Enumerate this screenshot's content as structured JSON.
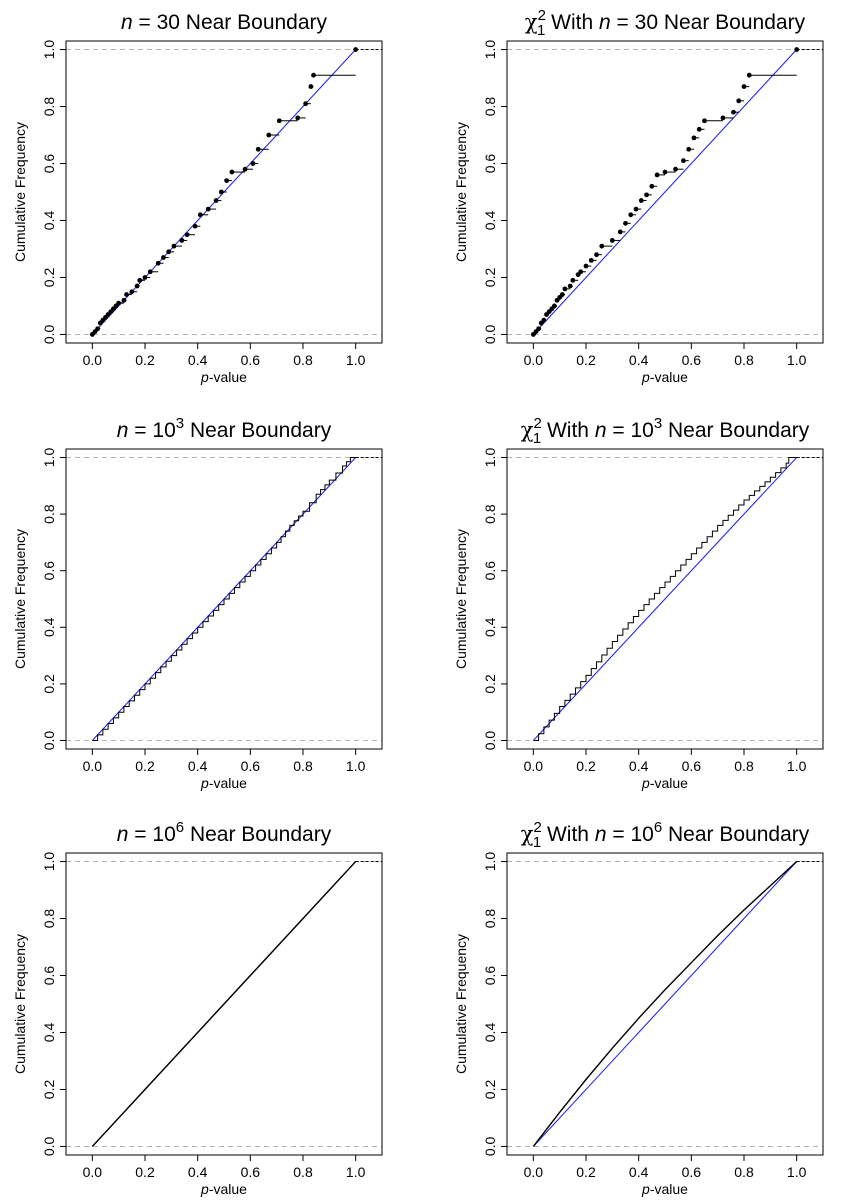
{
  "figure": {
    "colors": {
      "ecdf": "#000000",
      "reference": "#2828e6",
      "guide": "#b4b4b4"
    }
  },
  "chart_data": [
    {
      "type": "line",
      "title": {
        "italic": "n",
        "rest": " = 30 Near Boundary"
      },
      "xlabel": {
        "italic": "p",
        "rest": "-value"
      },
      "ylabel": "Cumulative Frequency",
      "xlim": [
        -0.1,
        1.1
      ],
      "ylim": [
        -0.03,
        1.03
      ],
      "xticks": [
        "0.0",
        "0.2",
        "0.4",
        "0.6",
        "0.8",
        "1.0"
      ],
      "yticks": [
        "0.0",
        "0.2",
        "0.4",
        "0.6",
        "0.8",
        "1.0"
      ],
      "reference_lines": [
        0,
        1
      ],
      "grid": false,
      "series": [
        {
          "role": "reference",
          "x": [
            0,
            1
          ],
          "y": [
            0,
            1
          ]
        },
        {
          "role": "ecdf",
          "style": "step-points",
          "points": [
            [
              0.0,
              0.0
            ],
            [
              0.01,
              0.01
            ],
            [
              0.02,
              0.02
            ],
            [
              0.03,
              0.04
            ],
            [
              0.04,
              0.05
            ],
            [
              0.05,
              0.06
            ],
            [
              0.06,
              0.07
            ],
            [
              0.07,
              0.08
            ],
            [
              0.08,
              0.09
            ],
            [
              0.09,
              0.1
            ],
            [
              0.1,
              0.11
            ],
            [
              0.12,
              0.12
            ],
            [
              0.13,
              0.14
            ],
            [
              0.15,
              0.15
            ],
            [
              0.17,
              0.17
            ],
            [
              0.18,
              0.19
            ],
            [
              0.2,
              0.2
            ],
            [
              0.22,
              0.22
            ],
            [
              0.25,
              0.25
            ],
            [
              0.27,
              0.27
            ],
            [
              0.29,
              0.29
            ],
            [
              0.31,
              0.31
            ],
            [
              0.34,
              0.33
            ],
            [
              0.36,
              0.35
            ],
            [
              0.39,
              0.38
            ],
            [
              0.41,
              0.42
            ],
            [
              0.44,
              0.44
            ],
            [
              0.47,
              0.47
            ],
            [
              0.49,
              0.5
            ],
            [
              0.51,
              0.54
            ],
            [
              0.53,
              0.57
            ],
            [
              0.58,
              0.58
            ],
            [
              0.61,
              0.6
            ],
            [
              0.63,
              0.65
            ],
            [
              0.67,
              0.7
            ],
            [
              0.71,
              0.75
            ],
            [
              0.78,
              0.76
            ],
            [
              0.81,
              0.81
            ],
            [
              0.83,
              0.87
            ],
            [
              0.84,
              0.91
            ],
            [
              1.0,
              1.0
            ]
          ]
        }
      ]
    },
    {
      "type": "line",
      "title": {
        "sym": "χ",
        "sup": "2",
        "sub": "1",
        "pre": " With ",
        "italic": "n",
        "rest": " = 30 Near Boundary"
      },
      "xlabel": {
        "italic": "p",
        "rest": "-value"
      },
      "ylabel": "Cumulative Frequency",
      "xlim": [
        -0.1,
        1.1
      ],
      "ylim": [
        -0.03,
        1.03
      ],
      "xticks": [
        "0.0",
        "0.2",
        "0.4",
        "0.6",
        "0.8",
        "1.0"
      ],
      "yticks": [
        "0.0",
        "0.2",
        "0.4",
        "0.6",
        "0.8",
        "1.0"
      ],
      "reference_lines": [
        0,
        1
      ],
      "grid": false,
      "series": [
        {
          "role": "reference",
          "x": [
            0,
            1
          ],
          "y": [
            0,
            1
          ]
        },
        {
          "role": "ecdf",
          "style": "step-points",
          "points": [
            [
              0.0,
              0.0
            ],
            [
              0.01,
              0.01
            ],
            [
              0.02,
              0.02
            ],
            [
              0.03,
              0.04
            ],
            [
              0.04,
              0.05
            ],
            [
              0.05,
              0.07
            ],
            [
              0.06,
              0.08
            ],
            [
              0.07,
              0.09
            ],
            [
              0.08,
              0.1
            ],
            [
              0.09,
              0.12
            ],
            [
              0.1,
              0.13
            ],
            [
              0.11,
              0.14
            ],
            [
              0.12,
              0.16
            ],
            [
              0.14,
              0.17
            ],
            [
              0.15,
              0.19
            ],
            [
              0.17,
              0.21
            ],
            [
              0.18,
              0.22
            ],
            [
              0.2,
              0.24
            ],
            [
              0.22,
              0.26
            ],
            [
              0.24,
              0.28
            ],
            [
              0.26,
              0.31
            ],
            [
              0.3,
              0.33
            ],
            [
              0.33,
              0.36
            ],
            [
              0.35,
              0.39
            ],
            [
              0.37,
              0.42
            ],
            [
              0.39,
              0.44
            ],
            [
              0.41,
              0.47
            ],
            [
              0.43,
              0.49
            ],
            [
              0.45,
              0.52
            ],
            [
              0.47,
              0.56
            ],
            [
              0.5,
              0.57
            ],
            [
              0.54,
              0.58
            ],
            [
              0.57,
              0.61
            ],
            [
              0.59,
              0.65
            ],
            [
              0.61,
              0.69
            ],
            [
              0.63,
              0.72
            ],
            [
              0.65,
              0.75
            ],
            [
              0.72,
              0.76
            ],
            [
              0.76,
              0.78
            ],
            [
              0.78,
              0.82
            ],
            [
              0.8,
              0.87
            ],
            [
              0.82,
              0.91
            ],
            [
              1.0,
              1.0
            ]
          ]
        }
      ]
    },
    {
      "type": "line",
      "title": {
        "italic": "n",
        "rest": " = 10",
        "sup": "3",
        "after": " Near Boundary"
      },
      "xlabel": {
        "italic": "p",
        "rest": "-value"
      },
      "ylabel": "Cumulative Frequency",
      "xlim": [
        -0.1,
        1.1
      ],
      "ylim": [
        -0.03,
        1.03
      ],
      "xticks": [
        "0.0",
        "0.2",
        "0.4",
        "0.6",
        "0.8",
        "1.0"
      ],
      "yticks": [
        "0.0",
        "0.2",
        "0.4",
        "0.6",
        "0.8",
        "1.0"
      ],
      "reference_lines": [
        0,
        1
      ],
      "grid": false,
      "series": [
        {
          "role": "reference",
          "x": [
            0,
            1
          ],
          "y": [
            0,
            1
          ]
        },
        {
          "role": "ecdf",
          "style": "step",
          "points": [
            [
              0.0,
              0.0
            ],
            [
              0.1,
              0.1
            ],
            [
              0.2,
              0.2
            ],
            [
              0.3,
              0.3
            ],
            [
              0.4,
              0.4
            ],
            [
              0.5,
              0.5
            ],
            [
              0.6,
              0.6
            ],
            [
              0.7,
              0.7
            ],
            [
              0.75,
              0.76
            ],
            [
              0.8,
              0.81
            ],
            [
              0.85,
              0.87
            ],
            [
              0.9,
              0.92
            ],
            [
              0.95,
              0.97
            ],
            [
              0.98,
              1.0
            ],
            [
              1.0,
              1.0
            ]
          ]
        }
      ]
    },
    {
      "type": "line",
      "title": {
        "sym": "χ",
        "sup": "2",
        "sub": "1",
        "pre": " With ",
        "italic": "n",
        "rest": " = 10",
        "sup2": "3",
        "after": " Near Boundary"
      },
      "xlabel": {
        "italic": "p",
        "rest": "-value"
      },
      "ylabel": "Cumulative Frequency",
      "xlim": [
        -0.1,
        1.1
      ],
      "ylim": [
        -0.03,
        1.03
      ],
      "xticks": [
        "0.0",
        "0.2",
        "0.4",
        "0.6",
        "0.8",
        "1.0"
      ],
      "yticks": [
        "0.0",
        "0.2",
        "0.4",
        "0.6",
        "0.8",
        "1.0"
      ],
      "reference_lines": [
        0,
        1
      ],
      "grid": false,
      "series": [
        {
          "role": "reference",
          "x": [
            0,
            1
          ],
          "y": [
            0,
            1
          ]
        },
        {
          "role": "ecdf",
          "style": "step",
          "points": [
            [
              0.0,
              0.0
            ],
            [
              0.1,
              0.12
            ],
            [
              0.2,
              0.23
            ],
            [
              0.3,
              0.35
            ],
            [
              0.4,
              0.46
            ],
            [
              0.5,
              0.56
            ],
            [
              0.6,
              0.66
            ],
            [
              0.7,
              0.76
            ],
            [
              0.8,
              0.85
            ],
            [
              0.9,
              0.93
            ],
            [
              0.96,
              0.98
            ],
            [
              0.97,
              1.0
            ],
            [
              1.0,
              1.0
            ]
          ]
        }
      ]
    },
    {
      "type": "line",
      "title": {
        "italic": "n",
        "rest": " = 10",
        "sup": "6",
        "after": " Near Boundary"
      },
      "xlabel": {
        "italic": "p",
        "rest": "-value"
      },
      "ylabel": "Cumulative Frequency",
      "xlim": [
        -0.1,
        1.1
      ],
      "ylim": [
        -0.03,
        1.03
      ],
      "xticks": [
        "0.0",
        "0.2",
        "0.4",
        "0.6",
        "0.8",
        "1.0"
      ],
      "yticks": [
        "0.0",
        "0.2",
        "0.4",
        "0.6",
        "0.8",
        "1.0"
      ],
      "reference_lines": [
        0,
        1
      ],
      "grid": false,
      "series": [
        {
          "role": "reference",
          "x": [
            0,
            1
          ],
          "y": [
            0,
            1
          ]
        },
        {
          "role": "ecdf",
          "style": "line",
          "points": [
            [
              0.0,
              0.0
            ],
            [
              0.5,
              0.5
            ],
            [
              1.0,
              1.0
            ]
          ]
        }
      ]
    },
    {
      "type": "line",
      "title": {
        "sym": "χ",
        "sup": "2",
        "sub": "1",
        "pre": " With ",
        "italic": "n",
        "rest": " = 10",
        "sup2": "6",
        "after": " Near Boundary"
      },
      "xlabel": {
        "italic": "p",
        "rest": "-value"
      },
      "ylabel": "Cumulative Frequency",
      "xlim": [
        -0.1,
        1.1
      ],
      "ylim": [
        -0.03,
        1.03
      ],
      "xticks": [
        "0.0",
        "0.2",
        "0.4",
        "0.6",
        "0.8",
        "1.0"
      ],
      "yticks": [
        "0.0",
        "0.2",
        "0.4",
        "0.6",
        "0.8",
        "1.0"
      ],
      "reference_lines": [
        0,
        1
      ],
      "grid": false,
      "series": [
        {
          "role": "reference",
          "x": [
            0,
            1
          ],
          "y": [
            0,
            1
          ]
        },
        {
          "role": "ecdf",
          "style": "line",
          "points": [
            [
              0.0,
              0.0
            ],
            [
              0.1,
              0.12
            ],
            [
              0.2,
              0.235
            ],
            [
              0.3,
              0.345
            ],
            [
              0.4,
              0.45
            ],
            [
              0.5,
              0.55
            ],
            [
              0.6,
              0.645
            ],
            [
              0.7,
              0.74
            ],
            [
              0.8,
              0.83
            ],
            [
              0.9,
              0.915
            ],
            [
              1.0,
              1.0
            ]
          ]
        }
      ]
    }
  ]
}
